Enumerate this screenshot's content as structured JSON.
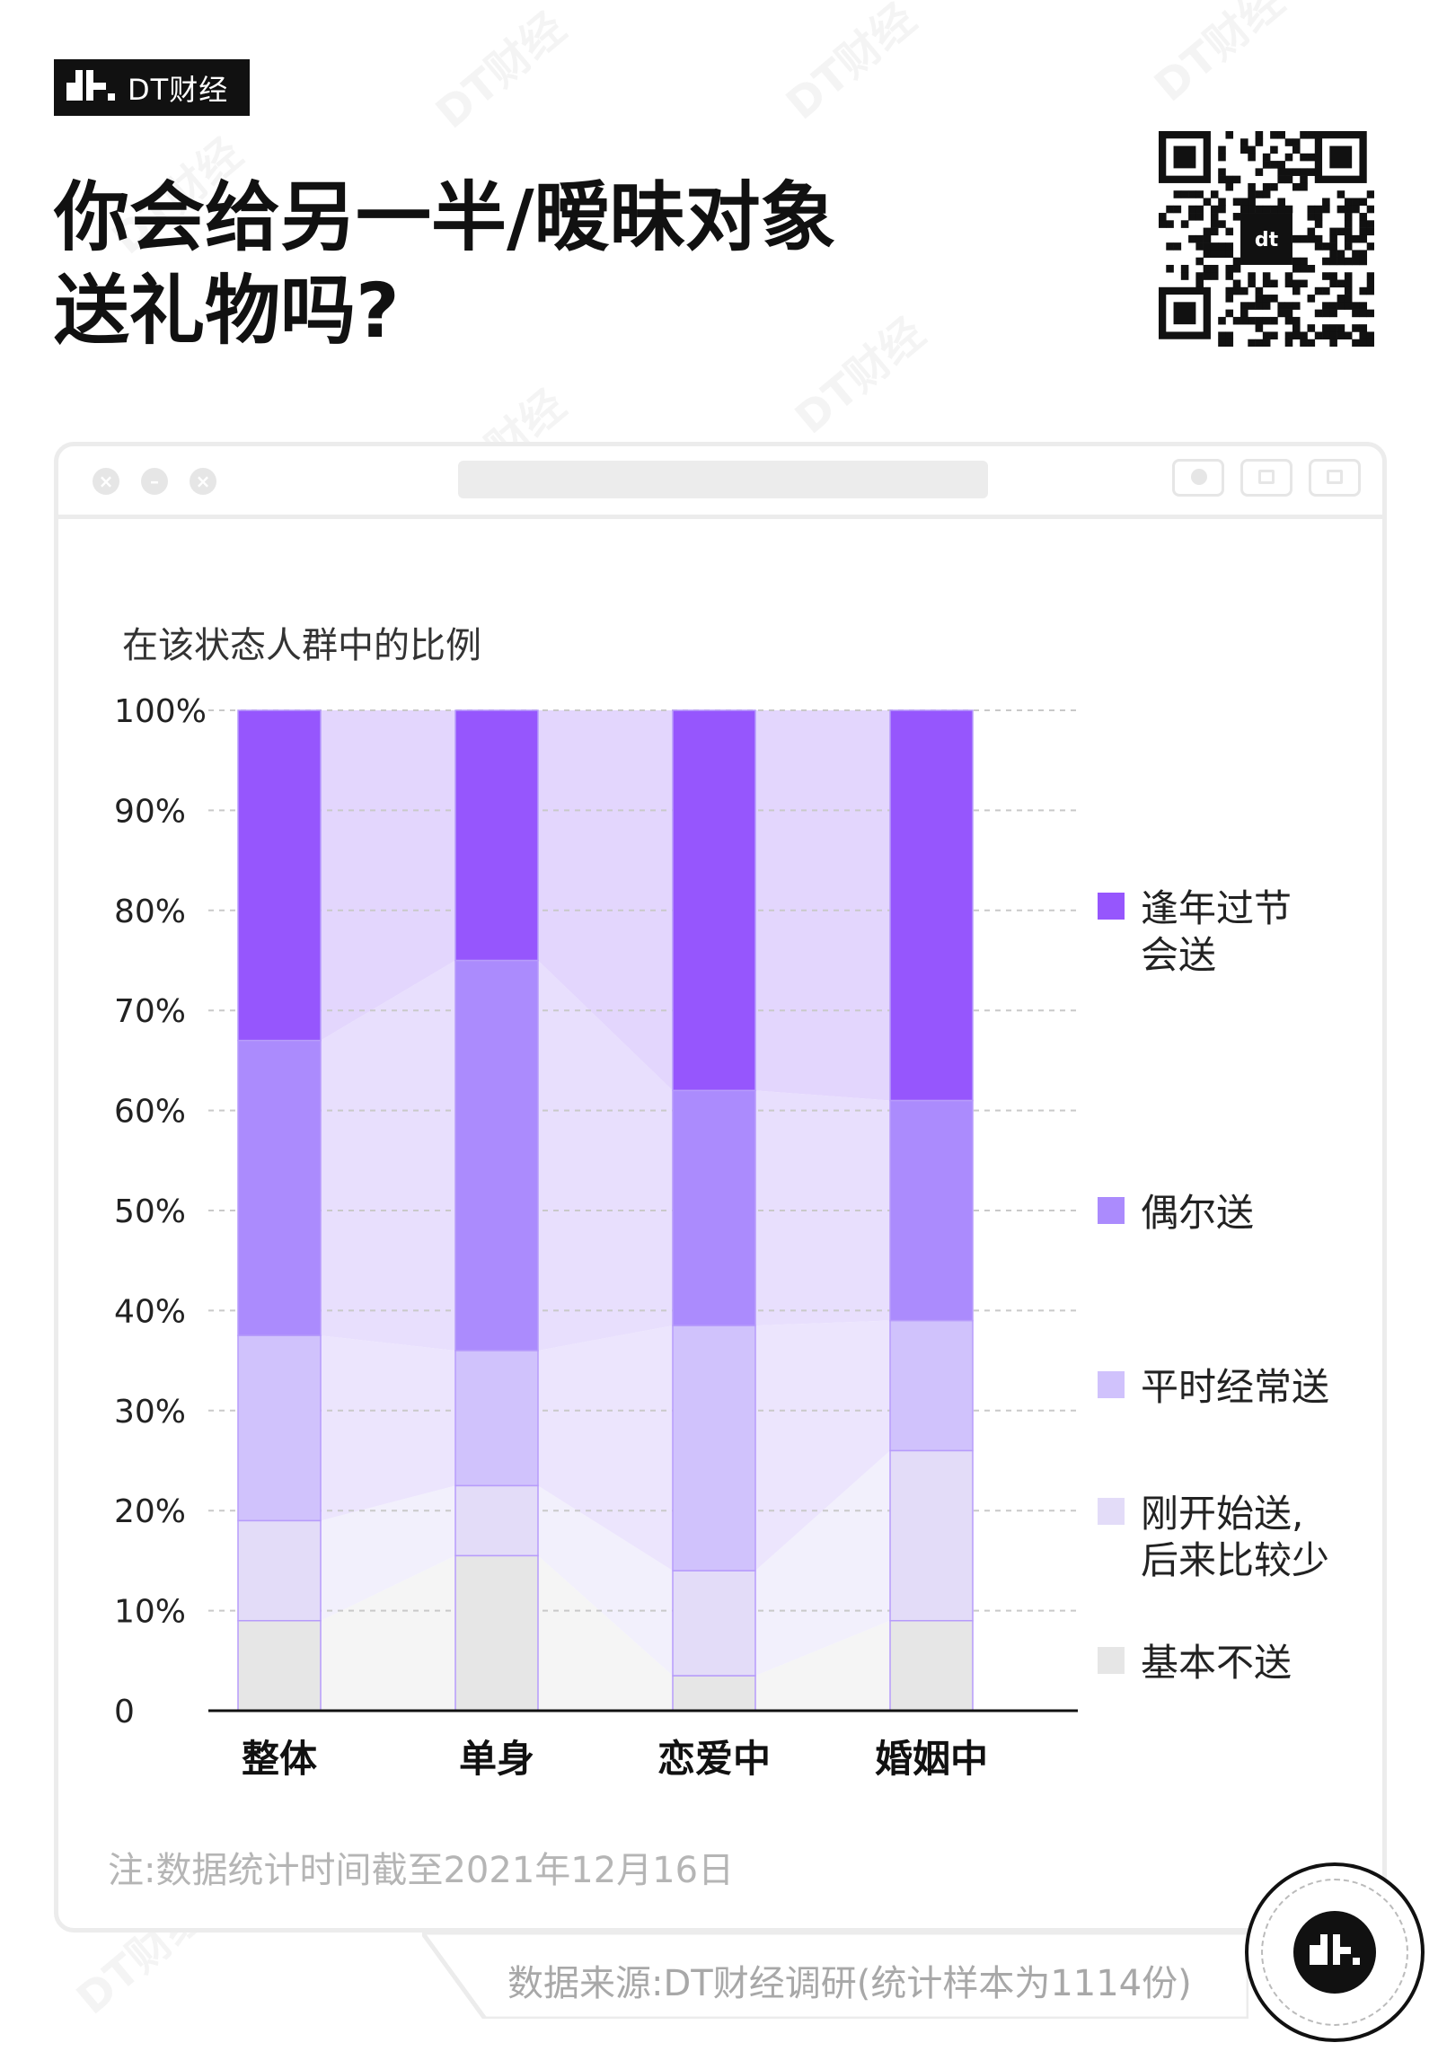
{
  "brand": {
    "name": "DT财经"
  },
  "title_lines": [
    "你会给另一半/暧昧对象",
    "送礼物吗?"
  ],
  "chart_title": "在该状态人群中的比例",
  "chart_data": {
    "type": "bar",
    "stacked": true,
    "categories": [
      "整体",
      "单身",
      "恋爱中",
      "婚姻中"
    ],
    "series": [
      {
        "name": "基本不送",
        "color": "#e6e6e6",
        "values": [
          9,
          15.5,
          3.5,
          9
        ]
      },
      {
        "name": "刚开始送,\n后来比较少",
        "color": "#e3dcf8",
        "values": [
          10,
          7,
          10.5,
          17
        ]
      },
      {
        "name": "平时经常送",
        "color": "#d0c2fc",
        "values": [
          18.5,
          13.5,
          24.5,
          13
        ]
      },
      {
        "name": "偶尔送",
        "color": "#ab8bfd",
        "values": [
          29.5,
          39,
          23.5,
          22
        ]
      },
      {
        "name": "逢年过节\n会送",
        "color": "#9656fd",
        "values": [
          33,
          25,
          38,
          39
        ]
      }
    ],
    "ylim": [
      0,
      100
    ],
    "yticks": [
      "0",
      "10%",
      "20%",
      "30%",
      "40%",
      "50%",
      "60%",
      "70%",
      "80%",
      "90%",
      "100%"
    ],
    "grid": true,
    "legend_position": "right"
  },
  "note": "注:数据统计时间截至2021年12月16日",
  "source": "数据来源:DT财经调研(统计样本为1114份)",
  "icons": {
    "close": "close-icon",
    "minimize": "minimize-icon",
    "maximize": "maximize-icon",
    "qr": "qr-code-icon",
    "logo": "dt-logo-icon"
  }
}
